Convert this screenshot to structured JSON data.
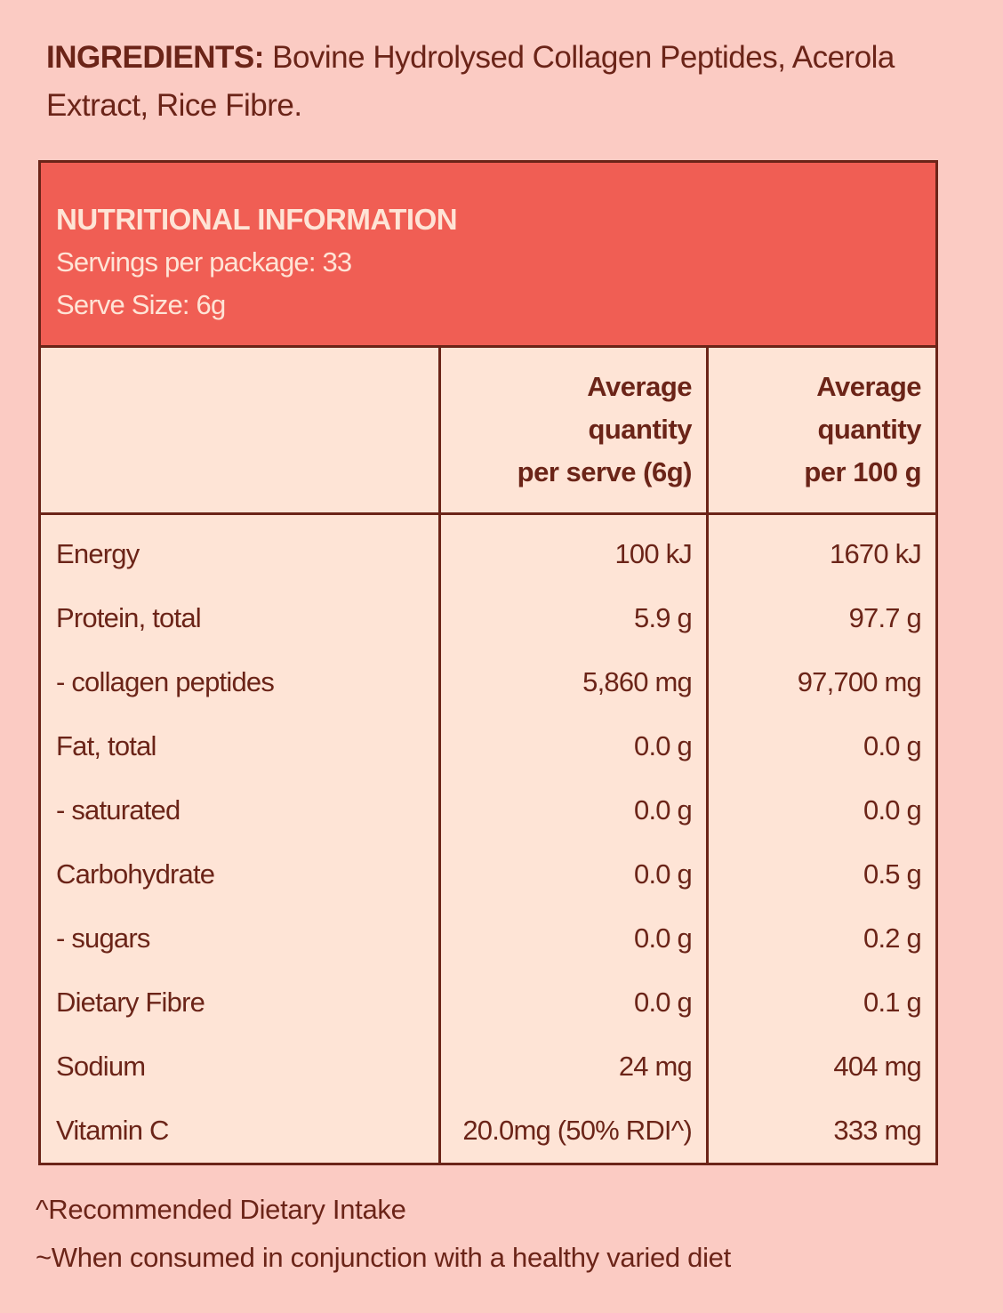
{
  "ingredients": {
    "label": "INGREDIENTS:",
    "text": "Bovine Hydrolysed Collagen Peptides, Acerola Extract, Rice Fibre."
  },
  "panel": {
    "title": "NUTRITIONAL INFORMATION",
    "servings": "Servings per package: 33",
    "serve_size": "Serve Size: 6g",
    "col_headers": [
      {
        "l1": "Average",
        "l2": "quantity",
        "l3": "per serve (6g)"
      },
      {
        "l1": "Average",
        "l2": "quantity",
        "l3": "per 100 g"
      }
    ],
    "rows": [
      {
        "name": "Energy",
        "serve": "100 kJ",
        "per100": "1670 kJ"
      },
      {
        "name": "Protein, total",
        "serve": "5.9 g",
        "per100": "97.7 g"
      },
      {
        "name": "- collagen peptides",
        "serve": "5,860 mg",
        "per100": "97,700 mg"
      },
      {
        "name": "Fat, total",
        "serve": "0.0 g",
        "per100": "0.0 g"
      },
      {
        "name": "- saturated",
        "serve": "0.0 g",
        "per100": "0.0 g"
      },
      {
        "name": "Carbohydrate",
        "serve": "0.0 g",
        "per100": "0.5 g"
      },
      {
        "name": "- sugars",
        "serve": "0.0 g",
        "per100": "0.2 g"
      },
      {
        "name": "Dietary Fibre",
        "serve": "0.0 g",
        "per100": "0.1 g"
      },
      {
        "name": "Sodium",
        "serve": "24 mg",
        "per100": "404 mg"
      },
      {
        "name": "Vitamin C",
        "serve": "20.0mg (50% RDI^)",
        "per100": "333 mg"
      }
    ]
  },
  "footnotes": [
    "^Recommended Dietary Intake",
    "~When consumed in conjunction with a healthy varied diet"
  ],
  "colors": {
    "background": "#FBCBC3",
    "header": "#F05E54",
    "cell": "#FEE4D6",
    "text": "#6B2418"
  }
}
